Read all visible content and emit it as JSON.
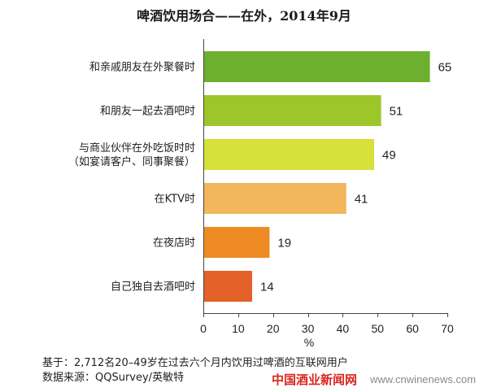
{
  "chart_data": {
    "type": "bar",
    "orientation": "horizontal",
    "title": "啤酒饮用场合——在外，2014年9月",
    "categories": [
      "和亲戚朋友在外聚餐时",
      "和朋友一起去酒吧时",
      "与商业伙伴在外吃饭时时（如宴请客户、同事聚餐）",
      "在KTV时",
      "在夜店时",
      "自己独自去酒吧时"
    ],
    "values": [
      65,
      51,
      49,
      41,
      19,
      14
    ],
    "colors": [
      "#6DAF2E",
      "#9CC62A",
      "#D6E13A",
      "#F2B65C",
      "#EE8B22",
      "#E4622A"
    ],
    "xlabel": "%",
    "ylabel": "",
    "xlim": [
      0,
      70
    ],
    "xticks": [
      0,
      10,
      20,
      30,
      40,
      50,
      60,
      70
    ],
    "grid": false
  },
  "footer": {
    "note": "基于：2,712名20–49岁在过去六个月内饮用过啤酒的互联网用户",
    "source": "数据来源：QQSurvey/英敏特"
  },
  "watermark": {
    "site_name": "中国酒业新闻网",
    "url": "www.cnwinenews.com"
  }
}
